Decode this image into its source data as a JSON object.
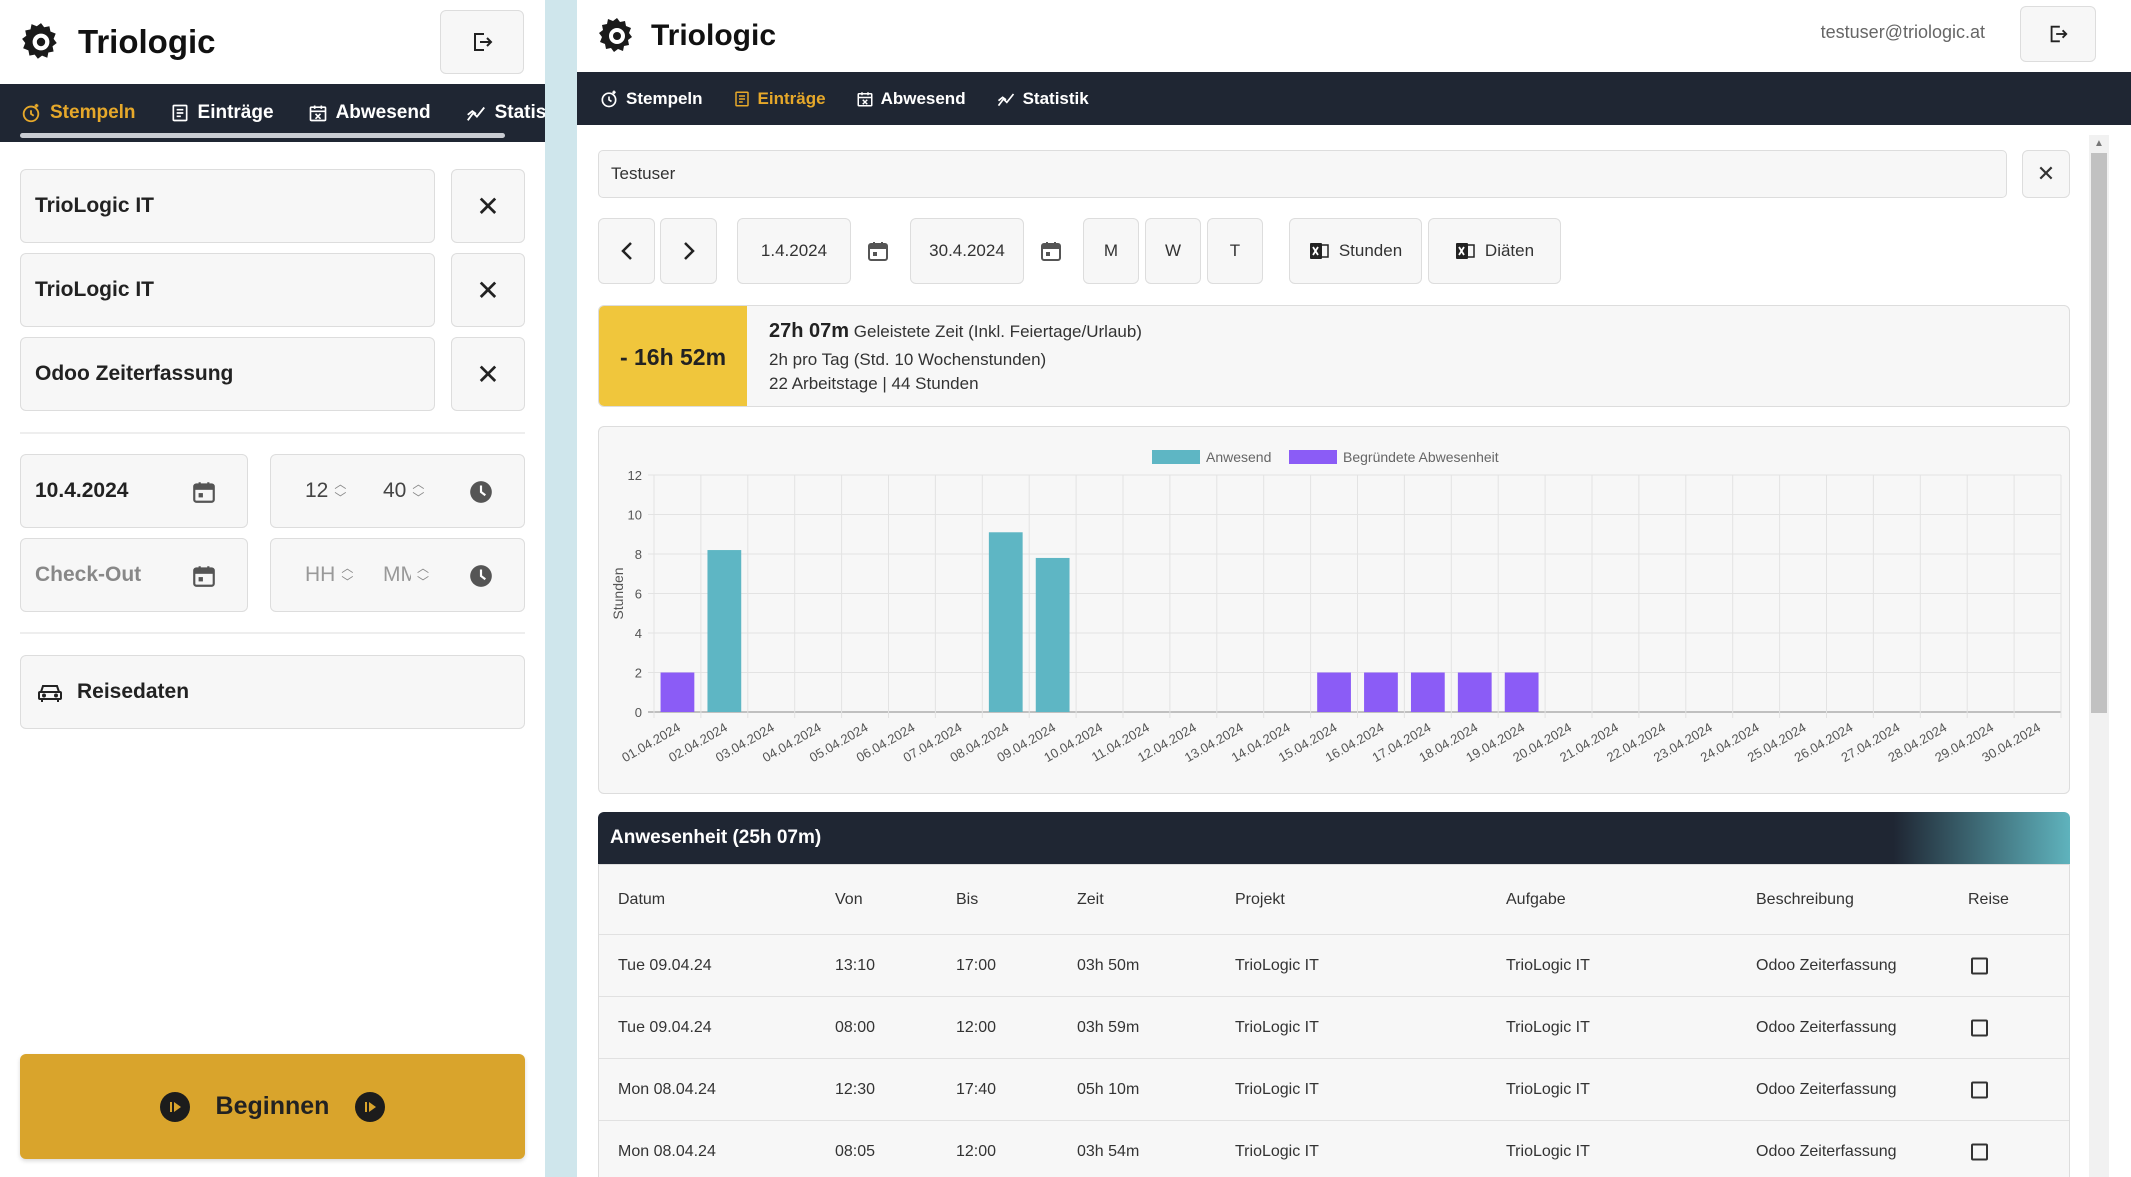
{
  "app": {
    "brand": "Triologic"
  },
  "mobile": {
    "nav": [
      {
        "label": "Stempeln",
        "icon": "stamp-icon",
        "active": true
      },
      {
        "label": "Einträge",
        "icon": "entries-icon",
        "active": false
      },
      {
        "label": "Abwesend",
        "icon": "absent-icon",
        "active": false
      },
      {
        "label": "Statis",
        "icon": "statistics-icon",
        "active": false
      }
    ],
    "project": "TrioLogic IT",
    "task": "TrioLogic IT",
    "description": "Odoo Zeiterfassung",
    "checkin_date": "10.4.2024",
    "checkin_hour": "12",
    "checkin_minute": "40",
    "checkout_date_placeholder": "Check-Out",
    "checkout_hour_placeholder": "HH",
    "checkout_minute_placeholder": "MM",
    "travel_label": "Reisedaten",
    "start_label": "Beginnen"
  },
  "desktop": {
    "user_email": "testuser@triologic.at",
    "nav": [
      {
        "label": "Stempeln",
        "icon": "stamp-icon",
        "active": false
      },
      {
        "label": "Einträge",
        "icon": "entries-icon",
        "active": true
      },
      {
        "label": "Abwesend",
        "icon": "absent-icon",
        "active": false
      },
      {
        "label": "Statistik",
        "icon": "statistics-icon",
        "active": false
      }
    ],
    "user_filter": "Testuser",
    "date_from": "1.4.2024",
    "date_to": "30.4.2024",
    "period_buttons": [
      "M",
      "W",
      "T"
    ],
    "export_hours": "Stunden",
    "export_diets": "Diäten",
    "summary": {
      "balance": "- 16h 52m",
      "worked": "27h 07m",
      "worked_label": "Geleistete Zeit (Inkl. Feiertage/Urlaub)",
      "per_day": "2h pro Tag (Std. 10 Wochenstunden)",
      "workdays": "22 Arbeitstage | 44 Stunden"
    },
    "table": {
      "title": "Anwesenheit (25h 07m)",
      "columns": [
        "Datum",
        "Von",
        "Bis",
        "Zeit",
        "Projekt",
        "Aufgabe",
        "Beschreibung",
        "Reise"
      ],
      "rows": [
        [
          "Tue 09.04.24",
          "13:10",
          "17:00",
          "03h 50m",
          "TrioLogic IT",
          "TrioLogic IT",
          "Odoo Zeiterfassung"
        ],
        [
          "Tue 09.04.24",
          "08:00",
          "12:00",
          "03h 59m",
          "TrioLogic IT",
          "TrioLogic IT",
          "Odoo Zeiterfassung"
        ],
        [
          "Mon 08.04.24",
          "12:30",
          "17:40",
          "05h 10m",
          "TrioLogic IT",
          "TrioLogic IT",
          "Odoo Zeiterfassung"
        ],
        [
          "Mon 08.04.24",
          "08:05",
          "12:00",
          "03h 54m",
          "TrioLogic IT",
          "TrioLogic IT",
          "Odoo Zeiterfassung"
        ]
      ]
    }
  },
  "colors": {
    "present": "#5eb6c4",
    "absence": "#8b5cf6",
    "accent": "#d9a42c",
    "nav_bg": "#1f2633"
  },
  "chart_data": {
    "type": "bar",
    "ylabel": "Stunden",
    "ylim": [
      0,
      12
    ],
    "yticks": [
      0,
      2,
      4,
      6,
      8,
      10,
      12
    ],
    "legend_position": "top-center",
    "categories": [
      "01.04.2024",
      "02.04.2024",
      "03.04.2024",
      "04.04.2024",
      "05.04.2024",
      "06.04.2024",
      "07.04.2024",
      "08.04.2024",
      "09.04.2024",
      "10.04.2024",
      "11.04.2024",
      "12.04.2024",
      "13.04.2024",
      "14.04.2024",
      "15.04.2024",
      "16.04.2024",
      "17.04.2024",
      "18.04.2024",
      "19.04.2024",
      "20.04.2024",
      "21.04.2024",
      "22.04.2024",
      "23.04.2024",
      "24.04.2024",
      "25.04.2024",
      "26.04.2024",
      "27.04.2024",
      "28.04.2024",
      "29.04.2024",
      "30.04.2024"
    ],
    "series": [
      {
        "name": "Anwesend",
        "color": "#5eb6c4",
        "values": [
          0,
          8.2,
          0,
          0,
          0,
          0,
          0,
          9.1,
          7.8,
          0,
          0,
          0,
          0,
          0,
          0,
          0,
          0,
          0,
          0,
          0,
          0,
          0,
          0,
          0,
          0,
          0,
          0,
          0,
          0,
          0
        ]
      },
      {
        "name": "Begründete Abwesenheit",
        "color": "#8b5cf6",
        "values": [
          2,
          0,
          0,
          0,
          0,
          0,
          0,
          0,
          0,
          0,
          0,
          0,
          0,
          0,
          2,
          2,
          2,
          2,
          2,
          0,
          0,
          0,
          0,
          0,
          0,
          0,
          0,
          0,
          0,
          0
        ]
      }
    ]
  }
}
